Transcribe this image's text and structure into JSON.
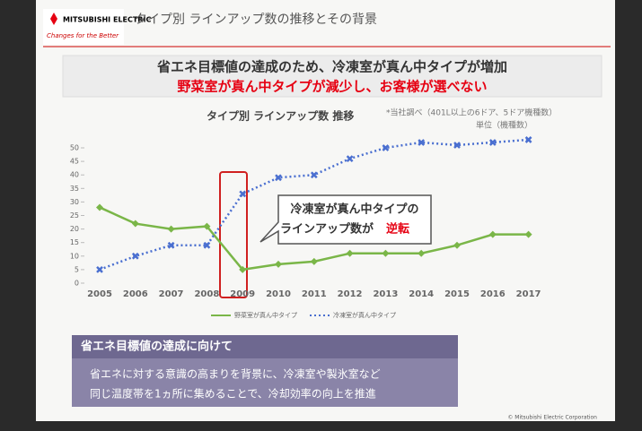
{
  "chart_data": {
    "type": "line",
    "brand": "MITSUBISHI ELECTRIC",
    "tagline": "Changes for the Better",
    "page_title": "タイプ別 ラインアップ数の推移とその背景",
    "headline": [
      "省エネ目標値の達成のため、冷凍室が真ん中タイプが増加",
      "野菜室が真ん中タイプが減少し、お客様が選べない"
    ],
    "title": "タイプ別 ラインアップ数 推移",
    "note": "*当社調べ（401L以上の6ドア、5ドア機種数）",
    "unit": "単位（機種数）",
    "categories": [
      "2005",
      "2006",
      "2007",
      "2008",
      "2009",
      "2010",
      "2011",
      "2012",
      "2013",
      "2014",
      "2015",
      "2016",
      "2017"
    ],
    "series": [
      {
        "name": "野菜室が真ん中タイプ",
        "color": "#7ab648",
        "values": [
          28,
          22,
          20,
          21,
          5,
          7,
          8,
          11,
          11,
          11,
          14,
          18,
          18
        ]
      },
      {
        "name": "冷凍室が真ん中タイプ",
        "color": "#4a6fd0",
        "values": [
          5,
          10,
          14,
          14,
          33,
          39,
          40,
          46,
          50,
          52,
          51,
          52,
          53
        ]
      }
    ],
    "ylim": [
      0,
      55
    ],
    "yticks": [
      0,
      5,
      10,
      15,
      20,
      25,
      30,
      35,
      40,
      45,
      50
    ],
    "callout": [
      "冷凍室が真ん中タイプの",
      "ラインアップ数が",
      "逆転"
    ],
    "box_title": "省エネ目標値の達成に向けて",
    "box_text": [
      "省エネに対する意識の高まりを背景に、冷凍室や製氷室など",
      "同じ温度帯を1ヵ所に集めることで、冷却効率の向上を推進"
    ],
    "copyright": "© Mitsubishi Electric Corporation"
  }
}
